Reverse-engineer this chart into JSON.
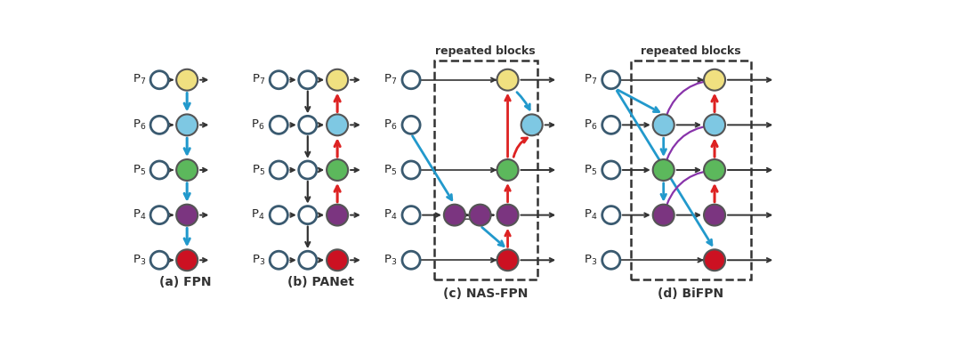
{
  "node_colors": {
    "yellow": "#f0e080",
    "blue": "#7ec8e3",
    "green": "#5cb85c",
    "purple": "#7b3580",
    "red": "#cc1122",
    "white": "#ffffff"
  },
  "levels": [
    7,
    6,
    5,
    4,
    3
  ],
  "node_color_by_level": [
    "yellow",
    "blue",
    "green",
    "purple",
    "red"
  ],
  "title_a": "(a) FPN",
  "title_b": "(b) PANet",
  "title_c": "(c) NAS-FPN",
  "title_d": "(d) BiFPN",
  "repeated_blocks": "repeated blocks",
  "blue_arrow": "#2299cc",
  "red_arrow": "#dd2222",
  "black_arrow": "#333333",
  "purple_arrow": "#8833aa"
}
